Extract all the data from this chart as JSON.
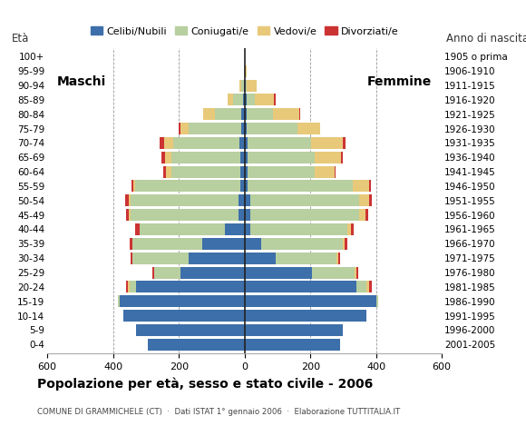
{
  "age_groups": [
    "0-4",
    "5-9",
    "10-14",
    "15-19",
    "20-24",
    "25-29",
    "30-34",
    "35-39",
    "40-44",
    "45-49",
    "50-54",
    "55-59",
    "60-64",
    "65-69",
    "70-74",
    "75-79",
    "80-84",
    "85-89",
    "90-94",
    "95-99",
    "100+"
  ],
  "birth_years": [
    "2001-2005",
    "1996-2000",
    "1991-1995",
    "1986-1990",
    "1981-1985",
    "1976-1980",
    "1971-1975",
    "1966-1970",
    "1961-1965",
    "1956-1960",
    "1951-1955",
    "1946-1950",
    "1941-1945",
    "1936-1940",
    "1931-1935",
    "1926-1930",
    "1921-1925",
    "1916-1920",
    "1911-1915",
    "1906-1910",
    "1905 o prima"
  ],
  "males": {
    "celibi": [
      295,
      330,
      370,
      380,
      330,
      195,
      170,
      130,
      60,
      18,
      18,
      14,
      12,
      12,
      16,
      10,
      10,
      4,
      2,
      0,
      0
    ],
    "coniugati": [
      0,
      0,
      0,
      5,
      20,
      80,
      170,
      210,
      260,
      330,
      330,
      320,
      210,
      210,
      200,
      160,
      80,
      30,
      8,
      2,
      0
    ],
    "vedovi": [
      0,
      0,
      0,
      0,
      5,
      0,
      0,
      0,
      0,
      5,
      5,
      5,
      18,
      20,
      30,
      25,
      35,
      18,
      5,
      0,
      0
    ],
    "divorziati": [
      0,
      0,
      0,
      0,
      5,
      5,
      8,
      10,
      12,
      8,
      10,
      5,
      8,
      10,
      12,
      5,
      0,
      0,
      0,
      0,
      0
    ]
  },
  "females": {
    "celibi": [
      290,
      300,
      370,
      400,
      340,
      205,
      95,
      50,
      18,
      18,
      18,
      10,
      8,
      8,
      8,
      5,
      5,
      5,
      2,
      0,
      0
    ],
    "coniugati": [
      0,
      0,
      0,
      5,
      30,
      130,
      185,
      250,
      295,
      330,
      330,
      320,
      205,
      205,
      195,
      155,
      80,
      25,
      5,
      2,
      0
    ],
    "vedovi": [
      0,
      0,
      0,
      0,
      10,
      5,
      5,
      5,
      10,
      20,
      30,
      50,
      60,
      80,
      95,
      70,
      80,
      60,
      30,
      5,
      0
    ],
    "divorziati": [
      0,
      0,
      0,
      0,
      8,
      5,
      5,
      8,
      10,
      8,
      8,
      5,
      5,
      5,
      8,
      0,
      5,
      5,
      0,
      0,
      0
    ]
  },
  "colors": {
    "celibi": "#3d6faa",
    "coniugati": "#b8cfa0",
    "vedovi": "#e8c97a",
    "divorziati": "#cc3333"
  },
  "title": "Popolazione per età, sesso e stato civile - 2006",
  "subtitle": "COMUNE DI GRAMMICHELE (CT)  ·  Dati ISTAT 1° gennaio 2006  ·  Elaborazione TUTTITALIA.IT",
  "label_maschi": "Maschi",
  "label_femmine": "Femmine",
  "label_eta": "Età",
  "label_anno": "Anno di nascita",
  "xlim": 600,
  "background_color": "#ffffff",
  "grid_color": "#999999"
}
